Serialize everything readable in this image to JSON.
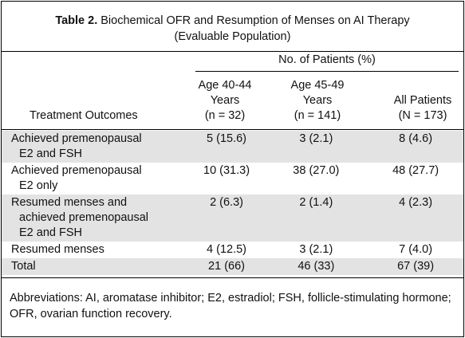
{
  "table": {
    "number": "Table 2.",
    "title": "Biochemical OFR and Resumption of Menses on AI Therapy",
    "subtitle": "(Evaluable Population)",
    "group_header": "No. of Patients (%)",
    "row_header": "Treatment Outcomes",
    "columns": [
      [
        "Age 40-44",
        "Years",
        "(n = 32)"
      ],
      [
        "Age 45-49",
        "Years",
        "(n = 141)"
      ],
      [
        "All Patients",
        "(N = 173)"
      ]
    ],
    "rows": [
      {
        "label": [
          "Achieved premenopausal",
          "E2 and FSH"
        ],
        "cells": [
          "5 (15.6)",
          "3 (2.1)",
          "8 (4.6)"
        ]
      },
      {
        "label": [
          "Achieved premenopausal",
          "E2 only"
        ],
        "cells": [
          "10 (31.3)",
          "38 (27.0)",
          "48 (27.7)"
        ]
      },
      {
        "label": [
          "Resumed menses and",
          "achieved premenopausal",
          "E2 and FSH"
        ],
        "cells": [
          "2 (6.3)",
          "2 (1.4)",
          "4 (2.3)"
        ]
      },
      {
        "label": [
          "Resumed menses"
        ],
        "cells": [
          "4 (12.5)",
          "3 (2.1)",
          "7 (4.0)"
        ]
      },
      {
        "label": [
          "Total"
        ],
        "cells": [
          "21 (66)",
          "46 (33)",
          "67 (39)"
        ]
      }
    ],
    "footnote": "Abbreviations: AI, aromatase inhibitor; E2, estradiol; FSH, follicle-stimulating hormone; OFR, ovarian function recovery."
  }
}
